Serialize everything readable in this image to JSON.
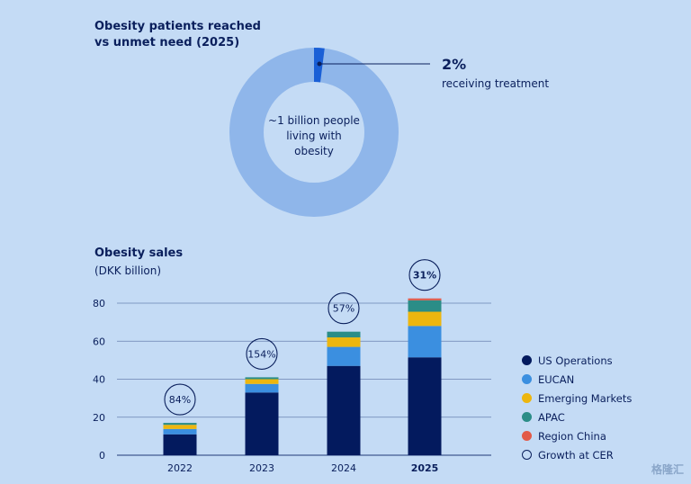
{
  "donut": {
    "title_line1": "Obesity patients reached",
    "title_line2": "vs unmet need (2025)",
    "center_line1": "~1 billion people",
    "center_line2": "living with",
    "center_line3": "obesity",
    "callout_value": "2%",
    "callout_label": "receiving treatment",
    "share_treated": 0.02,
    "colors": {
      "untreated": "#8fb6ea",
      "treated": "#1a5fd6",
      "hole": "#c4dbf5"
    }
  },
  "chart_data": {
    "type": "bar",
    "stacked": true,
    "title": "Obesity sales",
    "subtitle": "(DKK billion)",
    "categories": [
      "2022",
      "2023",
      "2024",
      "2025"
    ],
    "ylim": [
      0,
      80
    ],
    "yticks": [
      0,
      20,
      40,
      60,
      80
    ],
    "grid": true,
    "series": [
      {
        "name": "US Operations",
        "color": "#031a5e",
        "values": [
          11,
          33,
          47,
          51.5
        ]
      },
      {
        "name": "EUCAN",
        "color": "#3b8fe0",
        "values": [
          2.8,
          4.5,
          10,
          16.5
        ]
      },
      {
        "name": "Emerging Markets",
        "color": "#edb60f",
        "values": [
          2.2,
          2.5,
          5,
          7.5
        ]
      },
      {
        "name": "APAC",
        "color": "#2b8d87",
        "values": [
          1,
          1,
          3,
          6
        ]
      },
      {
        "name": "Region China",
        "color": "#e25a48",
        "values": [
          0,
          0,
          0,
          1
        ]
      }
    ],
    "growth_label": "Growth at CER",
    "growth": [
      "84%",
      "154%",
      "57%",
      "31%"
    ],
    "bold_category": "2025"
  },
  "watermark": "格隆汇"
}
